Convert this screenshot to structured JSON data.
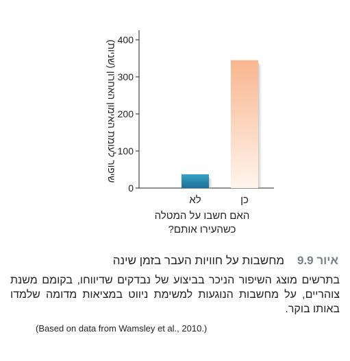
{
  "chart_data": {
    "type": "bar",
    "categories": [
      "לא",
      "כן"
    ],
    "values": [
      37,
      345
    ],
    "ylabel": "שיפור לעומת האימון האחרון (שניות)",
    "xlabel": [
      "האם חשבו על המטלה",
      "כשהעירו אותם?"
    ],
    "ylim": [
      0,
      420
    ],
    "yticks": [
      0,
      100,
      200,
      300,
      400
    ],
    "grid": false,
    "colors": {
      "bar_no_top": "#3aa0c4",
      "bar_no_bottom": "#1d6f95",
      "bar_yes_top": "#f9b690",
      "bar_yes_bottom": "#fff4ec"
    }
  },
  "caption": {
    "label": "איור",
    "number": "9.9",
    "title": "מחשבות על חוויות העבר בזמן שינה",
    "body": "בתרשים מוצג השיפור הניכר בביצוע של נבדקים שדיווחו, בקומם משנת צוהריים, על מחשבות הנוגעות למשימת ניווט במציאות מדומה שלמדו באותו בוקר.",
    "source": "(Based on data from Wamsley et al., 2010.)"
  }
}
